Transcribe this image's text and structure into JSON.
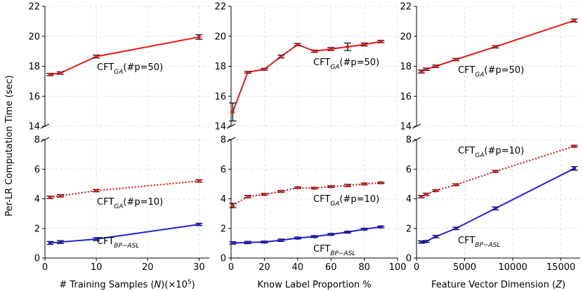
{
  "figure": {
    "ylabel": "Per-LR Computation Time (sec)"
  },
  "chart_data": [
    {
      "type": "line",
      "panel": "left",
      "xlabel": "# Training Samples (N)(×10⁵)",
      "xlabel_parts": [
        "# Training Samples (",
        "N",
        ")(×10",
        "5",
        ")"
      ],
      "xlim": [
        0,
        32
      ],
      "xticks": [
        0,
        10,
        20,
        30
      ],
      "top_ylim": [
        14,
        22
      ],
      "top_yticks": [
        14,
        16,
        18,
        20,
        22
      ],
      "bottom_ylim": [
        0,
        8
      ],
      "bottom_yticks": [
        0,
        2,
        4,
        6,
        8
      ],
      "series": [
        {
          "name": "CFT_GA(#p=50)",
          "axis": "top",
          "color": "#e41a1c",
          "style": "solid",
          "x": [
            1,
            3,
            10,
            30
          ],
          "values": [
            17.45,
            17.55,
            18.65,
            19.95
          ],
          "err": [
            0.08,
            0.08,
            0.1,
            0.15
          ],
          "annotation": {
            "main": "CFT",
            "sub": "GA",
            "suffix": "(#p=50)"
          }
        },
        {
          "name": "CFT_GA(#p=10)",
          "axis": "bottom",
          "color": "#e41a1c",
          "style": "dotted",
          "x": [
            1,
            3,
            10,
            30
          ],
          "values": [
            4.1,
            4.2,
            4.55,
            5.2
          ],
          "err": [
            0.08,
            0.08,
            0.08,
            0.08
          ],
          "annotation": {
            "main": "CFT",
            "sub": "GA",
            "suffix": "(#p=10)"
          }
        },
        {
          "name": "CFT_BP-ASL",
          "axis": "bottom",
          "color": "#1f1fd6",
          "style": "solid",
          "x": [
            1,
            3,
            10,
            30
          ],
          "values": [
            1.02,
            1.08,
            1.28,
            2.27
          ],
          "err": [
            0.1,
            0.1,
            0.1,
            0.08
          ],
          "annotation": {
            "main": "CFT",
            "sub": "BP−ASL",
            "suffix": ""
          }
        }
      ]
    },
    {
      "type": "line",
      "panel": "middle",
      "xlabel": "Know Label Proportion %",
      "xlabel_parts": [
        "Know Label Proportion %"
      ],
      "xlim": [
        0,
        100
      ],
      "xticks": [
        0,
        20,
        40,
        60,
        80,
        100
      ],
      "top_ylim": [
        14,
        22
      ],
      "top_yticks": [
        14,
        16,
        18,
        20,
        22
      ],
      "bottom_ylim": [
        0,
        8
      ],
      "bottom_yticks": [
        0,
        2,
        4,
        6,
        8
      ],
      "series": [
        {
          "name": "CFT_GA(#p=50)",
          "axis": "top",
          "color": "#e41a1c",
          "style": "solid",
          "x": [
            1,
            10,
            20,
            30,
            40,
            50,
            60,
            70,
            80,
            90
          ],
          "values": [
            14.95,
            17.6,
            17.8,
            18.65,
            19.45,
            19.0,
            19.15,
            19.3,
            19.45,
            19.65
          ],
          "err": [
            0.6,
            0.06,
            0.06,
            0.1,
            0.08,
            0.08,
            0.1,
            0.25,
            0.1,
            0.08
          ],
          "annotation": {
            "main": "CFT",
            "sub": "GA",
            "suffix": "(#p=50)"
          }
        },
        {
          "name": "CFT_GA(#p=10)",
          "axis": "bottom",
          "color": "#e41a1c",
          "style": "dotted",
          "x": [
            1,
            10,
            20,
            30,
            40,
            50,
            60,
            70,
            80,
            90
          ],
          "values": [
            3.55,
            4.15,
            4.3,
            4.5,
            4.75,
            4.72,
            4.82,
            4.9,
            5.0,
            5.08
          ],
          "err": [
            0.15,
            0.08,
            0.06,
            0.06,
            0.05,
            0.05,
            0.06,
            0.08,
            0.06,
            0.05
          ],
          "annotation": {
            "main": "CFT",
            "sub": "GA",
            "suffix": "(#p=10)"
          }
        },
        {
          "name": "CFT_BP-ASL",
          "axis": "bottom",
          "color": "#1f1fd6",
          "style": "solid",
          "x": [
            1,
            10,
            20,
            30,
            40,
            50,
            60,
            70,
            80,
            90
          ],
          "values": [
            1.02,
            1.05,
            1.08,
            1.2,
            1.35,
            1.45,
            1.6,
            1.75,
            1.95,
            2.1
          ],
          "err": [
            0.08,
            0.08,
            0.06,
            0.08,
            0.06,
            0.06,
            0.06,
            0.06,
            0.06,
            0.06
          ],
          "annotation": {
            "main": "CFT",
            "sub": "BP−ASL",
            "suffix": ""
          }
        }
      ]
    },
    {
      "type": "line",
      "panel": "right",
      "xlabel": "Feature Vector Dimension (Z)",
      "xlabel_parts": [
        "Feature Vector Dimension (",
        "Z",
        ")"
      ],
      "xlim": [
        0,
        17000
      ],
      "xticks": [
        0,
        5000,
        10000,
        15000
      ],
      "top_ylim": [
        14,
        22
      ],
      "top_yticks": [
        14,
        16,
        18,
        20,
        22
      ],
      "bottom_ylim": [
        0,
        8
      ],
      "bottom_yticks": [
        0,
        2,
        4,
        6,
        8
      ],
      "series": [
        {
          "name": "CFT_GA(#p=50)",
          "axis": "top",
          "color": "#e41a1c",
          "style": "solid",
          "x": [
            500,
            1000,
            2000,
            4096,
            8192,
            16384
          ],
          "values": [
            17.65,
            17.8,
            18.0,
            18.45,
            19.3,
            21.05
          ],
          "err": [
            0.1,
            0.08,
            0.08,
            0.08,
            0.08,
            0.1
          ],
          "annotation": {
            "main": "CFT",
            "sub": "GA",
            "suffix": "(#p=50)"
          }
        },
        {
          "name": "CFT_GA(#p=10)",
          "axis": "bottom",
          "color": "#e41a1c",
          "style": "dotted",
          "x": [
            500,
            1000,
            2000,
            4096,
            8192,
            16384
          ],
          "values": [
            4.15,
            4.3,
            4.55,
            4.95,
            5.85,
            7.55
          ],
          "err": [
            0.08,
            0.08,
            0.06,
            0.06,
            0.06,
            0.06
          ],
          "annotation": {
            "main": "CFT",
            "sub": "GA",
            "suffix": "(#p=10)"
          }
        },
        {
          "name": "CFT_BP-ASL",
          "axis": "bottom",
          "color": "#1f1fd6",
          "style": "solid",
          "x": [
            500,
            1000,
            2000,
            4096,
            8192,
            16384
          ],
          "values": [
            1.08,
            1.12,
            1.45,
            2.0,
            3.35,
            6.05
          ],
          "err": [
            0.08,
            0.06,
            0.08,
            0.08,
            0.1,
            0.12
          ],
          "annotation": {
            "main": "CFT",
            "sub": "BP−ASL",
            "suffix": ""
          }
        }
      ]
    }
  ]
}
